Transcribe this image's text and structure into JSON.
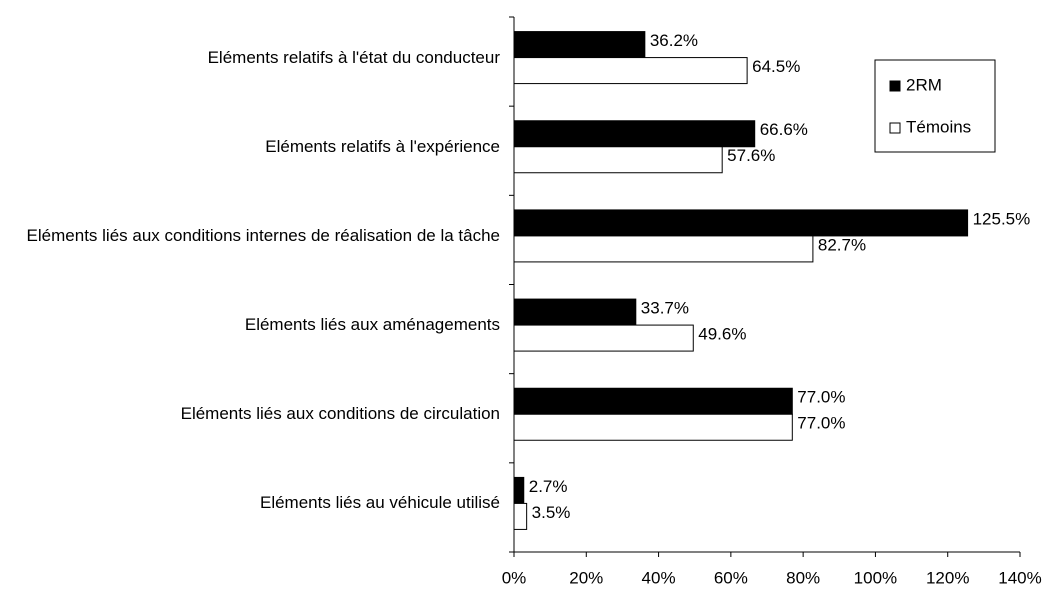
{
  "chart_data": {
    "type": "bar",
    "orientation": "horizontal",
    "categories": [
      "Eléments relatifs à l'état du conducteur",
      "Eléments relatifs à l'expérience",
      "Eléments liés aux conditions internes de réalisation de la tâche",
      "Eléments liés aux aménagements",
      "Eléments liés aux conditions de circulation",
      "Eléments liés au véhicule utilisé"
    ],
    "series": [
      {
        "name": "2RM",
        "color": "#000000",
        "values": [
          36.2,
          66.6,
          125.5,
          33.7,
          77.0,
          2.7
        ],
        "value_labels": [
          "36.2%",
          "66.6%",
          "125.5%",
          "33.7%",
          "77.0%",
          "2.7%"
        ]
      },
      {
        "name": "Témoins",
        "color": "#ffffff",
        "values": [
          64.5,
          57.6,
          82.7,
          49.6,
          77.0,
          3.5
        ],
        "value_labels": [
          "64.5%",
          "57.6%",
          "82.7%",
          "49.6%",
          "77.0%",
          "3.5%"
        ]
      }
    ],
    "xlim": [
      0,
      140
    ],
    "xticks": [
      {
        "value": 0,
        "label": "0%"
      },
      {
        "value": 20,
        "label": "20%"
      },
      {
        "value": 40,
        "label": "40%"
      },
      {
        "value": 60,
        "label": "60%"
      },
      {
        "value": 80,
        "label": "80%"
      },
      {
        "value": 100,
        "label": "100%"
      },
      {
        "value": 120,
        "label": "120%"
      },
      {
        "value": 140,
        "label": "140%"
      }
    ],
    "legend": "upper right",
    "grid": false
  }
}
